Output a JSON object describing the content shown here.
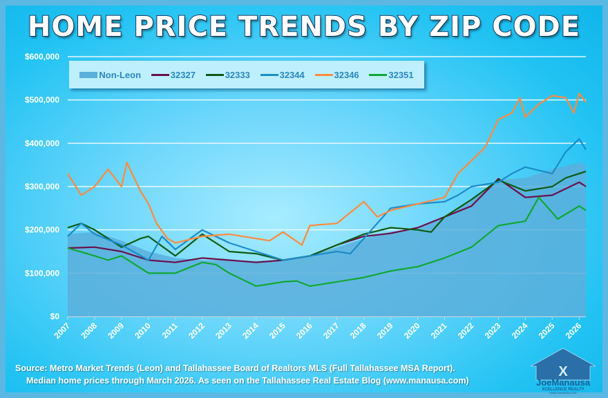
{
  "title": "HOME PRICE TRENDS BY ZIP CODE",
  "source_lines": [
    "Source: Metro Market Trends (Leon) and Tallahassee Board of Realtors MLS (Full Tallahassee MSA Report).",
    "Median home prices through March 2026.  As seen on the Tallahassee Real Estate Blog (www.manausa.com)"
  ],
  "logo": {
    "name": "JoeManausa",
    "sub": "XCELLENCE REALTY",
    "url": "www.manausa.com"
  },
  "chart_data": {
    "type": "line",
    "title": "HOME PRICE TRENDS BY ZIP CODE",
    "xlim": [
      2007,
      2026.25
    ],
    "ylim": [
      0,
      600000
    ],
    "x_ticks": [
      "2007",
      "2008",
      "2009",
      "2010",
      "2011",
      "2012",
      "2013",
      "2014",
      "2015",
      "2016",
      "2017",
      "2018",
      "2019",
      "2020",
      "2021",
      "2022",
      "2023",
      "2024",
      "2025",
      "2026"
    ],
    "y_ticks": [
      "$0",
      "$100,000",
      "$200,000",
      "$300,000",
      "$400,000",
      "$500,000",
      "$600,000"
    ],
    "grid": "horizontal",
    "legend_placement": "top-left",
    "series": [
      {
        "name": "Non-Leon",
        "kind": "area",
        "color": "#5aafdc",
        "points": [
          [
            2007,
            190000
          ],
          [
            2008,
            195000
          ],
          [
            2009,
            175000
          ],
          [
            2010,
            150000
          ],
          [
            2011,
            135000
          ],
          [
            2012,
            130000
          ],
          [
            2013,
            130000
          ],
          [
            2014,
            128000
          ],
          [
            2015,
            130000
          ],
          [
            2016,
            140000
          ],
          [
            2017,
            160000
          ],
          [
            2018,
            180000
          ],
          [
            2019,
            195000
          ],
          [
            2020,
            205000
          ],
          [
            2021,
            230000
          ],
          [
            2022,
            270000
          ],
          [
            2023,
            315000
          ],
          [
            2024,
            320000
          ],
          [
            2025,
            340000
          ],
          [
            2026,
            355000
          ],
          [
            2026.25,
            350000
          ]
        ]
      },
      {
        "name": "32327",
        "color": "#6b0f4a",
        "points": [
          [
            2007,
            158000
          ],
          [
            2008,
            160000
          ],
          [
            2009,
            150000
          ],
          [
            2010,
            130000
          ],
          [
            2011,
            125000
          ],
          [
            2012,
            135000
          ],
          [
            2013,
            130000
          ],
          [
            2014,
            125000
          ],
          [
            2015,
            130000
          ],
          [
            2016,
            140000
          ],
          [
            2017,
            165000
          ],
          [
            2018,
            185000
          ],
          [
            2019,
            192000
          ],
          [
            2020,
            205000
          ],
          [
            2021,
            230000
          ],
          [
            2022,
            255000
          ],
          [
            2023,
            318000
          ],
          [
            2024,
            275000
          ],
          [
            2025,
            280000
          ],
          [
            2026,
            310000
          ],
          [
            2026.25,
            300000
          ]
        ]
      },
      {
        "name": "32333",
        "color": "#0f5a12",
        "points": [
          [
            2007,
            205000
          ],
          [
            2007.5,
            215000
          ],
          [
            2008,
            200000
          ],
          [
            2009,
            160000
          ],
          [
            2009.7,
            180000
          ],
          [
            2010,
            185000
          ],
          [
            2011,
            140000
          ],
          [
            2012,
            190000
          ],
          [
            2013,
            150000
          ],
          [
            2014,
            145000
          ],
          [
            2015,
            130000
          ],
          [
            2016,
            140000
          ],
          [
            2017,
            165000
          ],
          [
            2018,
            190000
          ],
          [
            2019,
            205000
          ],
          [
            2020,
            200000
          ],
          [
            2020.5,
            195000
          ],
          [
            2021,
            230000
          ],
          [
            2022,
            270000
          ],
          [
            2023,
            315000
          ],
          [
            2024,
            290000
          ],
          [
            2025,
            300000
          ],
          [
            2025.5,
            320000
          ],
          [
            2026,
            330000
          ],
          [
            2026.25,
            335000
          ]
        ]
      },
      {
        "name": "32344",
        "color": "#1a8cc8",
        "points": [
          [
            2007,
            185000
          ],
          [
            2007.5,
            215000
          ],
          [
            2008,
            190000
          ],
          [
            2009,
            165000
          ],
          [
            2010,
            130000
          ],
          [
            2010.5,
            185000
          ],
          [
            2011,
            155000
          ],
          [
            2012,
            200000
          ],
          [
            2013,
            170000
          ],
          [
            2014,
            150000
          ],
          [
            2015,
            130000
          ],
          [
            2016,
            140000
          ],
          [
            2017,
            150000
          ],
          [
            2017.5,
            145000
          ],
          [
            2018,
            180000
          ],
          [
            2019,
            250000
          ],
          [
            2020,
            260000
          ],
          [
            2021,
            265000
          ],
          [
            2021.5,
            280000
          ],
          [
            2022,
            300000
          ],
          [
            2023,
            310000
          ],
          [
            2023.5,
            330000
          ],
          [
            2024,
            345000
          ],
          [
            2025,
            330000
          ],
          [
            2025.5,
            380000
          ],
          [
            2026,
            410000
          ],
          [
            2026.25,
            385000
          ]
        ]
      },
      {
        "name": "32346",
        "color": "#ff8a3d",
        "points": [
          [
            2007,
            330000
          ],
          [
            2007.5,
            280000
          ],
          [
            2008,
            300000
          ],
          [
            2008.5,
            340000
          ],
          [
            2009,
            300000
          ],
          [
            2009.2,
            355000
          ],
          [
            2009.7,
            290000
          ],
          [
            2010,
            260000
          ],
          [
            2010.3,
            215000
          ],
          [
            2010.7,
            180000
          ],
          [
            2011,
            170000
          ],
          [
            2012,
            185000
          ],
          [
            2013,
            190000
          ],
          [
            2014,
            180000
          ],
          [
            2014.5,
            175000
          ],
          [
            2015,
            195000
          ],
          [
            2015.7,
            165000
          ],
          [
            2016,
            210000
          ],
          [
            2017,
            215000
          ],
          [
            2018,
            265000
          ],
          [
            2018.5,
            230000
          ],
          [
            2019,
            245000
          ],
          [
            2020,
            260000
          ],
          [
            2021,
            275000
          ],
          [
            2021.5,
            330000
          ],
          [
            2022,
            360000
          ],
          [
            2022.5,
            390000
          ],
          [
            2023,
            455000
          ],
          [
            2023.5,
            470000
          ],
          [
            2023.8,
            505000
          ],
          [
            2024,
            460000
          ],
          [
            2024.5,
            490000
          ],
          [
            2025,
            510000
          ],
          [
            2025.5,
            505000
          ],
          [
            2025.8,
            470000
          ],
          [
            2026,
            515000
          ],
          [
            2026.25,
            495000
          ]
        ]
      },
      {
        "name": "32351",
        "color": "#10a830",
        "points": [
          [
            2007,
            158000
          ],
          [
            2008,
            140000
          ],
          [
            2008.5,
            130000
          ],
          [
            2009,
            140000
          ],
          [
            2010,
            100000
          ],
          [
            2011,
            100000
          ],
          [
            2012,
            125000
          ],
          [
            2012.5,
            120000
          ],
          [
            2013,
            100000
          ],
          [
            2014,
            70000
          ],
          [
            2015,
            80000
          ],
          [
            2015.5,
            82000
          ],
          [
            2016,
            70000
          ],
          [
            2017,
            80000
          ],
          [
            2018,
            90000
          ],
          [
            2019,
            105000
          ],
          [
            2020,
            115000
          ],
          [
            2021,
            135000
          ],
          [
            2022,
            160000
          ],
          [
            2023,
            210000
          ],
          [
            2024,
            220000
          ],
          [
            2024.5,
            275000
          ],
          [
            2025,
            240000
          ],
          [
            2025.2,
            225000
          ],
          [
            2026,
            255000
          ],
          [
            2026.25,
            245000
          ]
        ]
      }
    ]
  }
}
